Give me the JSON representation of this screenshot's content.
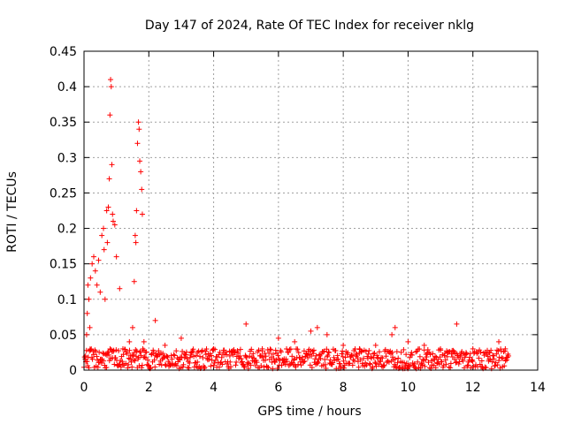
{
  "chart_data": {
    "type": "scatter",
    "title": "Day 147 of 2024, Rate Of TEC Index for receiver nklg",
    "xlabel": "GPS time / hours",
    "ylabel": "ROTI / TECUs",
    "xlim": [
      0,
      14
    ],
    "ylim": [
      0,
      0.45
    ],
    "grid": true,
    "marker": "+",
    "color": "#ff0000",
    "x_ticks": [
      0,
      2,
      4,
      6,
      8,
      10,
      12,
      14
    ],
    "x_tick_labels": [
      "0",
      "2",
      "4",
      "6",
      "8",
      "10",
      "12",
      "14"
    ],
    "y_ticks": [
      0,
      0.05,
      0.1,
      0.15,
      0.2,
      0.25,
      0.3,
      0.35,
      0.4,
      0.45
    ],
    "y_tick_labels": [
      "0",
      "0.05",
      "0.1",
      "0.15",
      "0.2",
      "0.25",
      "0.3",
      "0.35",
      "0.4",
      "0.45"
    ],
    "series": [
      {
        "name": "ROTI",
        "points": [
          [
            0.05,
            0.02
          ],
          [
            0.08,
            0.05
          ],
          [
            0.1,
            0.08
          ],
          [
            0.12,
            0.12
          ],
          [
            0.15,
            0.1
          ],
          [
            0.18,
            0.06
          ],
          [
            0.2,
            0.13
          ],
          [
            0.25,
            0.15
          ],
          [
            0.3,
            0.16
          ],
          [
            0.35,
            0.14
          ],
          [
            0.4,
            0.12
          ],
          [
            0.45,
            0.155
          ],
          [
            0.5,
            0.11
          ],
          [
            0.55,
            0.19
          ],
          [
            0.6,
            0.2
          ],
          [
            0.62,
            0.17
          ],
          [
            0.65,
            0.1
          ],
          [
            0.7,
            0.225
          ],
          [
            0.72,
            0.18
          ],
          [
            0.75,
            0.23
          ],
          [
            0.78,
            0.27
          ],
          [
            0.8,
            0.36
          ],
          [
            0.82,
            0.41
          ],
          [
            0.84,
            0.4
          ],
          [
            0.86,
            0.29
          ],
          [
            0.88,
            0.22
          ],
          [
            0.9,
            0.21
          ],
          [
            0.95,
            0.205
          ],
          [
            1.0,
            0.16
          ],
          [
            1.1,
            0.115
          ],
          [
            1.2,
            0.03
          ],
          [
            1.4,
            0.04
          ],
          [
            1.5,
            0.06
          ],
          [
            1.55,
            0.125
          ],
          [
            1.58,
            0.19
          ],
          [
            1.6,
            0.18
          ],
          [
            1.62,
            0.225
          ],
          [
            1.65,
            0.32
          ],
          [
            1.68,
            0.35
          ],
          [
            1.7,
            0.34
          ],
          [
            1.72,
            0.295
          ],
          [
            1.75,
            0.28
          ],
          [
            1.78,
            0.255
          ],
          [
            1.8,
            0.22
          ],
          [
            1.85,
            0.04
          ],
          [
            2.2,
            0.07
          ],
          [
            2.5,
            0.035
          ],
          [
            3.0,
            0.045
          ],
          [
            3.5,
            0.025
          ],
          [
            4.0,
            0.03
          ],
          [
            4.5,
            0.02
          ],
          [
            5.0,
            0.065
          ],
          [
            5.5,
            0.03
          ],
          [
            6.0,
            0.045
          ],
          [
            6.5,
            0.04
          ],
          [
            7.0,
            0.055
          ],
          [
            7.2,
            0.06
          ],
          [
            7.5,
            0.05
          ],
          [
            8.0,
            0.035
          ],
          [
            8.5,
            0.03
          ],
          [
            9.0,
            0.035
          ],
          [
            9.5,
            0.05
          ],
          [
            9.6,
            0.06
          ],
          [
            10.0,
            0.04
          ],
          [
            10.5,
            0.035
          ],
          [
            11.0,
            0.03
          ],
          [
            11.5,
            0.065
          ],
          [
            12.0,
            0.03
          ],
          [
            12.5,
            0.025
          ],
          [
            12.8,
            0.04
          ],
          [
            13.0,
            0.03
          ],
          [
            13.1,
            0.02
          ]
        ],
        "baseline_band": {
          "x_range": [
            0,
            13.1
          ],
          "typical_max": 0.03,
          "typical_min": 0.002
        }
      }
    ]
  }
}
